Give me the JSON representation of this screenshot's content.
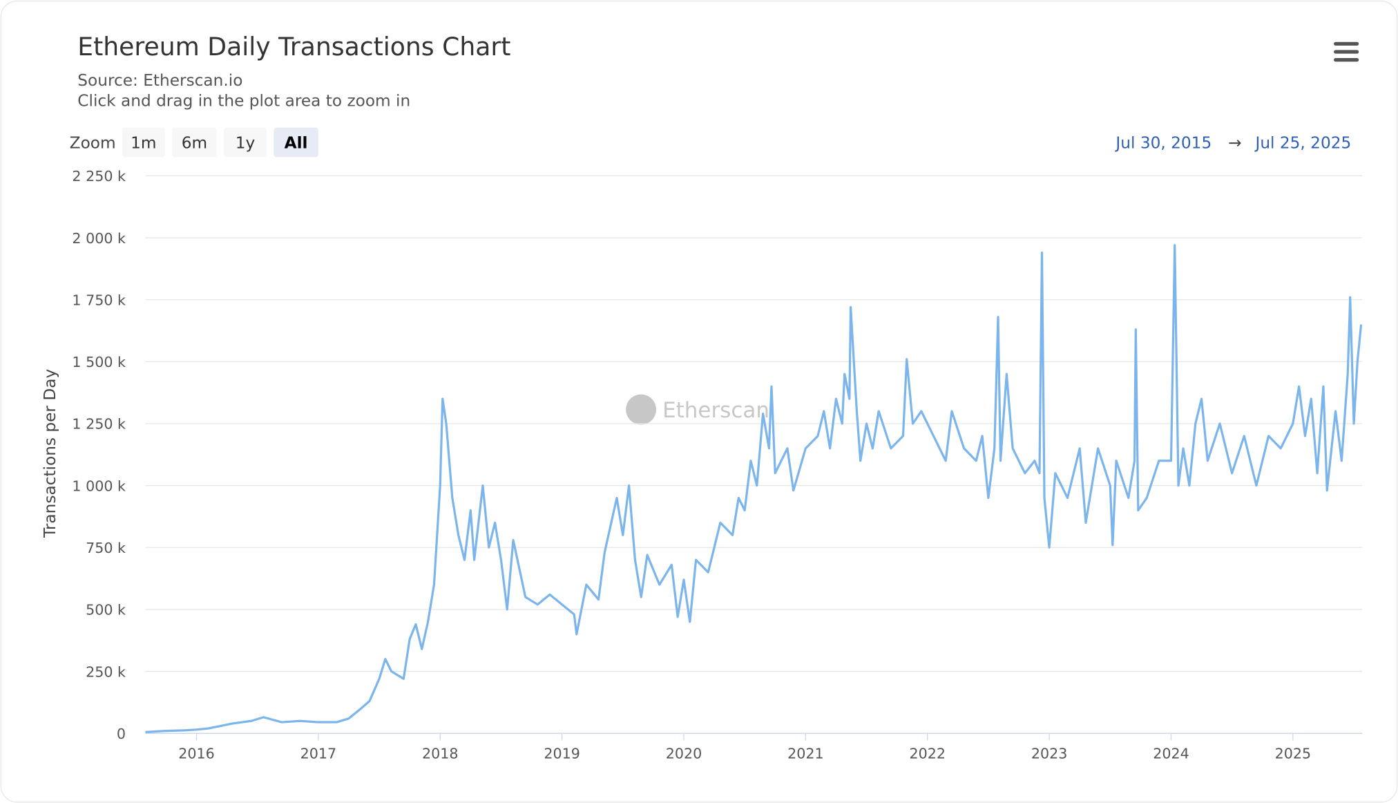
{
  "chart_data": {
    "type": "line",
    "title": "Ethereum Daily Transactions Chart",
    "subtitle": "Source: Etherscan.io",
    "instruction": "Click and drag in the plot area to zoom in",
    "zoom_label": "Zoom",
    "zoom_buttons": [
      "1m",
      "6m",
      "1y",
      "All"
    ],
    "zoom_selected": 3,
    "date_from": "Jul 30, 2015",
    "date_arrow": "→",
    "date_to": "Jul 25, 2025",
    "watermark": "Etherscan",
    "y_label": "Transactions per Day",
    "color": "#7cb5ec",
    "grid": true,
    "xlim": [
      2015.58,
      2025.57
    ],
    "xticks": [
      2016,
      2017,
      2018,
      2019,
      2020,
      2021,
      2022,
      2023,
      2024,
      2025
    ],
    "ylim": [
      0,
      2250
    ],
    "yticks": [
      0,
      {
        "value": 250,
        "label": "250 k"
      },
      {
        "value": 500,
        "label": "500 k"
      },
      {
        "value": 750,
        "label": "750 k"
      },
      {
        "value": 1000,
        "label": "1 000 k"
      },
      {
        "value": 1250,
        "label": "1 250 k"
      },
      {
        "value": 1500,
        "label": "1 500 k"
      },
      {
        "value": 1750,
        "label": "1 750 k"
      },
      {
        "value": 2000,
        "label": "2 000 k"
      },
      {
        "value": 2250,
        "label": "2 250 k"
      }
    ],
    "x": [
      2015.58,
      2015.75,
      2015.9,
      2016.0,
      2016.1,
      2016.2,
      2016.3,
      2016.45,
      2016.55,
      2016.7,
      2016.85,
      2017.0,
      2017.15,
      2017.25,
      2017.35,
      2017.42,
      2017.5,
      2017.55,
      2017.6,
      2017.7,
      2017.75,
      2017.8,
      2017.85,
      2017.9,
      2017.95,
      2018.0,
      2018.02,
      2018.05,
      2018.1,
      2018.15,
      2018.2,
      2018.25,
      2018.28,
      2018.35,
      2018.4,
      2018.45,
      2018.5,
      2018.55,
      2018.6,
      2018.7,
      2018.8,
      2018.9,
      2019.0,
      2019.1,
      2019.12,
      2019.2,
      2019.3,
      2019.35,
      2019.45,
      2019.5,
      2019.55,
      2019.6,
      2019.65,
      2019.7,
      2019.8,
      2019.9,
      2019.95,
      2020.0,
      2020.05,
      2020.1,
      2020.2,
      2020.3,
      2020.4,
      2020.45,
      2020.5,
      2020.55,
      2020.6,
      2020.65,
      2020.7,
      2020.72,
      2020.75,
      2020.85,
      2020.9,
      2021.0,
      2021.1,
      2021.15,
      2021.2,
      2021.25,
      2021.3,
      2021.32,
      2021.36,
      2021.37,
      2021.42,
      2021.45,
      2021.5,
      2021.55,
      2021.6,
      2021.7,
      2021.8,
      2021.83,
      2021.88,
      2021.95,
      2022.05,
      2022.15,
      2022.2,
      2022.3,
      2022.4,
      2022.45,
      2022.5,
      2022.55,
      2022.58,
      2022.6,
      2022.65,
      2022.7,
      2022.8,
      2022.88,
      2022.92,
      2022.94,
      2022.96,
      2023.0,
      2023.05,
      2023.15,
      2023.25,
      2023.3,
      2023.4,
      2023.5,
      2023.52,
      2023.55,
      2023.65,
      2023.7,
      2023.71,
      2023.73,
      2023.8,
      2023.9,
      2024.0,
      2024.03,
      2024.06,
      2024.1,
      2024.15,
      2024.2,
      2024.25,
      2024.3,
      2024.4,
      2024.5,
      2024.6,
      2024.7,
      2024.8,
      2024.9,
      2025.0,
      2025.05,
      2025.1,
      2025.15,
      2025.2,
      2025.25,
      2025.28,
      2025.35,
      2025.4,
      2025.45,
      2025.47,
      2025.5,
      2025.53,
      2025.56
    ],
    "values": [
      5,
      10,
      12,
      15,
      20,
      30,
      40,
      50,
      65,
      45,
      50,
      45,
      45,
      60,
      100,
      130,
      220,
      300,
      250,
      220,
      380,
      440,
      340,
      450,
      600,
      1000,
      1350,
      1250,
      950,
      800,
      700,
      900,
      700,
      1000,
      750,
      850,
      700,
      500,
      780,
      550,
      520,
      560,
      520,
      480,
      400,
      600,
      540,
      730,
      950,
      800,
      1000,
      700,
      550,
      720,
      600,
      680,
      470,
      620,
      450,
      700,
      650,
      850,
      800,
      950,
      900,
      1100,
      1000,
      1290,
      1150,
      1400,
      1050,
      1150,
      980,
      1150,
      1200,
      1300,
      1150,
      1350,
      1250,
      1450,
      1350,
      1720,
      1300,
      1100,
      1250,
      1150,
      1300,
      1150,
      1200,
      1510,
      1250,
      1300,
      1200,
      1100,
      1300,
      1150,
      1100,
      1200,
      950,
      1150,
      1680,
      1100,
      1450,
      1150,
      1050,
      1100,
      1050,
      1940,
      950,
      750,
      1050,
      950,
      1150,
      850,
      1150,
      1000,
      760,
      1100,
      950,
      1100,
      1630,
      900,
      950,
      1100,
      1100,
      1970,
      1000,
      1150,
      1000,
      1250,
      1350,
      1100,
      1250,
      1050,
      1200,
      1000,
      1200,
      1150,
      1250,
      1400,
      1200,
      1350,
      1050,
      1400,
      980,
      1300,
      1100,
      1450,
      1760,
      1250,
      1500,
      1650
    ]
  }
}
